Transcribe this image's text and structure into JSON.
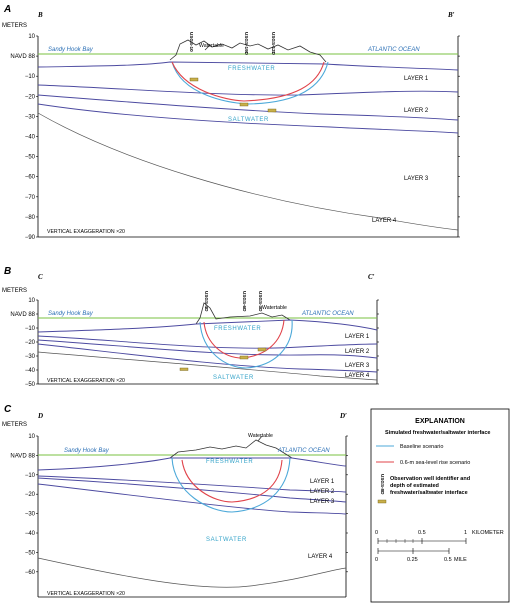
{
  "axis_title": "METERS",
  "datum_label": "NAVD 88",
  "exaggeration": "VERTICAL EXAGGERATION ×20",
  "water_table": "Watertable",
  "panels": [
    {
      "letter": "A",
      "start": "B",
      "end": "B′",
      "bay": "Sandy Hook Bay",
      "ocean": "ATLANTIC OCEAN",
      "freshwater": "FRESHWATER",
      "saltwater": "SALTWATER",
      "ticks": [
        "10",
        "NAVD 88",
        "−10",
        "−20",
        "−30",
        "−40",
        "−50",
        "−60",
        "−70",
        "−80",
        "−90"
      ],
      "layers": [
        "LAYER 1",
        "LAYER 2",
        "LAYER 3",
        "LAYER 4"
      ],
      "wells": [
        "USGS-10",
        "USGS-19D",
        "USGS-12D"
      ]
    },
    {
      "letter": "B",
      "start": "C",
      "end": "C′",
      "bay": "Sandy Hook Bay",
      "ocean": "ATLANTIC OCEAN",
      "freshwater": "FRESHWATER",
      "saltwater": "SALTWATER",
      "ticks": [
        "10",
        "NAVD 88",
        "−10",
        "−20",
        "−30",
        "−40",
        "−50"
      ],
      "layers": [
        "LAYER 1",
        "LAYER 2",
        "LAYER 3",
        "LAYER 4"
      ],
      "wells": [
        "USGS-4D",
        "USGS-6D",
        "USGS-3D"
      ]
    },
    {
      "letter": "C",
      "start": "D",
      "end": "D′",
      "bay": "Sandy Hook Bay",
      "ocean": "ATLANTIC OCEAN",
      "freshwater": "FRESHWATER",
      "saltwater": "SALTWATER",
      "ticks": [
        "10",
        "NAVD 88",
        "−10",
        "−20",
        "−30",
        "−40",
        "−50",
        "−60"
      ],
      "layers": [
        "LAYER 1",
        "LAYER 2",
        "LAYER 3",
        "LAYER 4"
      ],
      "wells": []
    }
  ],
  "explanation": {
    "title": "EXPLANATION",
    "subtitle": "Simulated freshwater/saltwater interface",
    "baseline": "Baseline scenario",
    "rise": "0.6-m sea-level rise scenario",
    "obs_well_label": "Observation well identifier and depth of estimated freshwater/saltwater interface",
    "obs_well_id": "USGS-8D",
    "km_ticks": [
      "0",
      "0.5",
      "1"
    ],
    "km_unit": "KILOMETER",
    "mile_ticks": [
      "0",
      "0.25",
      "0.5"
    ],
    "mile_unit": "MILE"
  },
  "colors": {
    "baseline": "#4da9d9",
    "rise": "#e0434a",
    "sea_level": "#7ac142",
    "layer_boundary": "#4c4aa0",
    "region_text": "#34a3c9"
  }
}
